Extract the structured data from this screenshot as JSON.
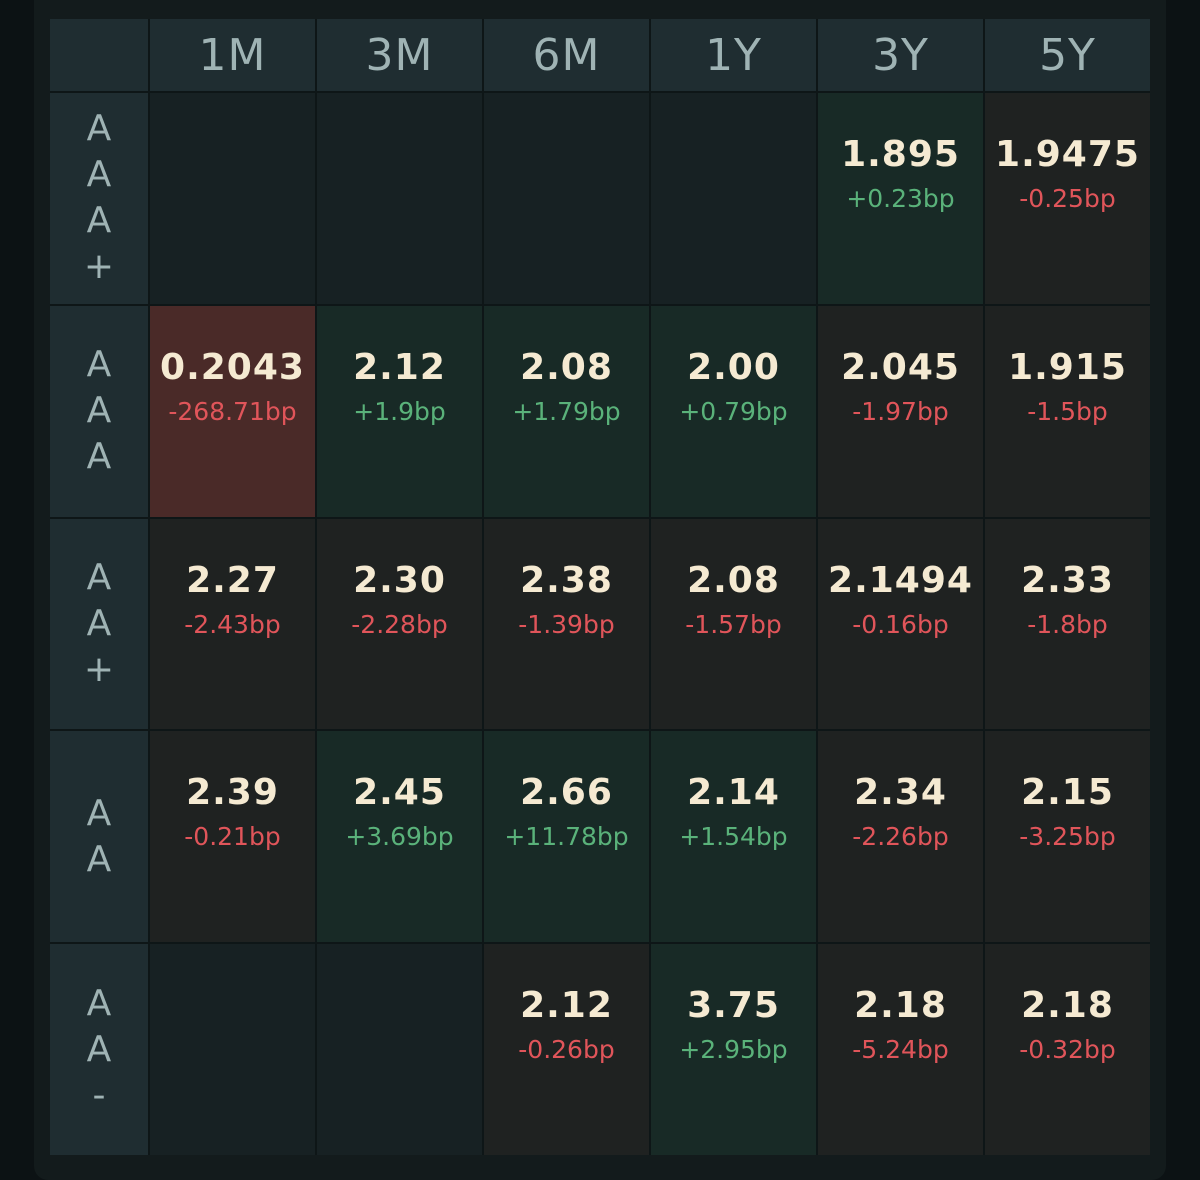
{
  "columns": [
    "1M",
    "3M",
    "6M",
    "1Y",
    "3Y",
    "5Y"
  ],
  "colors": {
    "background": "#0c1214",
    "header_bg": "#1f2d31",
    "empty_cell": "#172123",
    "positive_cell": "#182a26",
    "negative_cell": "#1f2221",
    "highlight_cell": "#4a2a28",
    "yield_text": "#f5ead2",
    "up_text": "#5ab27a",
    "down_text": "#e0555a"
  },
  "rows": [
    {
      "rating": "AAA+",
      "rating_chars": [
        "A",
        "A",
        "A",
        "+"
      ],
      "cells": [
        null,
        null,
        null,
        null,
        {
          "yield": "1.895",
          "change": "+0.23bp",
          "direction": "up"
        },
        {
          "yield": "1.9475",
          "change": "-0.25bp",
          "direction": "down"
        }
      ]
    },
    {
      "rating": "AAA",
      "rating_chars": [
        "A",
        "A",
        "A"
      ],
      "cells": [
        {
          "yield": "0.2043",
          "change": "-268.71bp",
          "direction": "down",
          "highlight": true
        },
        {
          "yield": "2.12",
          "change": "+1.9bp",
          "direction": "up"
        },
        {
          "yield": "2.08",
          "change": "+1.79bp",
          "direction": "up"
        },
        {
          "yield": "2.00",
          "change": "+0.79bp",
          "direction": "up"
        },
        {
          "yield": "2.045",
          "change": "-1.97bp",
          "direction": "down"
        },
        {
          "yield": "1.915",
          "change": "-1.5bp",
          "direction": "down"
        }
      ]
    },
    {
      "rating": "AA+",
      "rating_chars": [
        "A",
        "A",
        "+"
      ],
      "cells": [
        {
          "yield": "2.27",
          "change": "-2.43bp",
          "direction": "down"
        },
        {
          "yield": "2.30",
          "change": "-2.28bp",
          "direction": "down"
        },
        {
          "yield": "2.38",
          "change": "-1.39bp",
          "direction": "down"
        },
        {
          "yield": "2.08",
          "change": "-1.57bp",
          "direction": "down"
        },
        {
          "yield": "2.1494",
          "change": "-0.16bp",
          "direction": "down"
        },
        {
          "yield": "2.33",
          "change": "-1.8bp",
          "direction": "down"
        }
      ]
    },
    {
      "rating": "AA",
      "rating_chars": [
        "A",
        "A"
      ],
      "cells": [
        {
          "yield": "2.39",
          "change": "-0.21bp",
          "direction": "down"
        },
        {
          "yield": "2.45",
          "change": "+3.69bp",
          "direction": "up"
        },
        {
          "yield": "2.66",
          "change": "+11.78bp",
          "direction": "up"
        },
        {
          "yield": "2.14",
          "change": "+1.54bp",
          "direction": "up"
        },
        {
          "yield": "2.34",
          "change": "-2.26bp",
          "direction": "down"
        },
        {
          "yield": "2.15",
          "change": "-3.25bp",
          "direction": "down"
        }
      ]
    },
    {
      "rating": "AA-",
      "rating_chars": [
        "A",
        "A",
        "-"
      ],
      "cells": [
        null,
        null,
        {
          "yield": "2.12",
          "change": "-0.26bp",
          "direction": "down"
        },
        {
          "yield": "3.75",
          "change": "+2.95bp",
          "direction": "up"
        },
        {
          "yield": "2.18",
          "change": "-5.24bp",
          "direction": "down"
        },
        {
          "yield": "2.18",
          "change": "-0.32bp",
          "direction": "down"
        }
      ]
    }
  ]
}
